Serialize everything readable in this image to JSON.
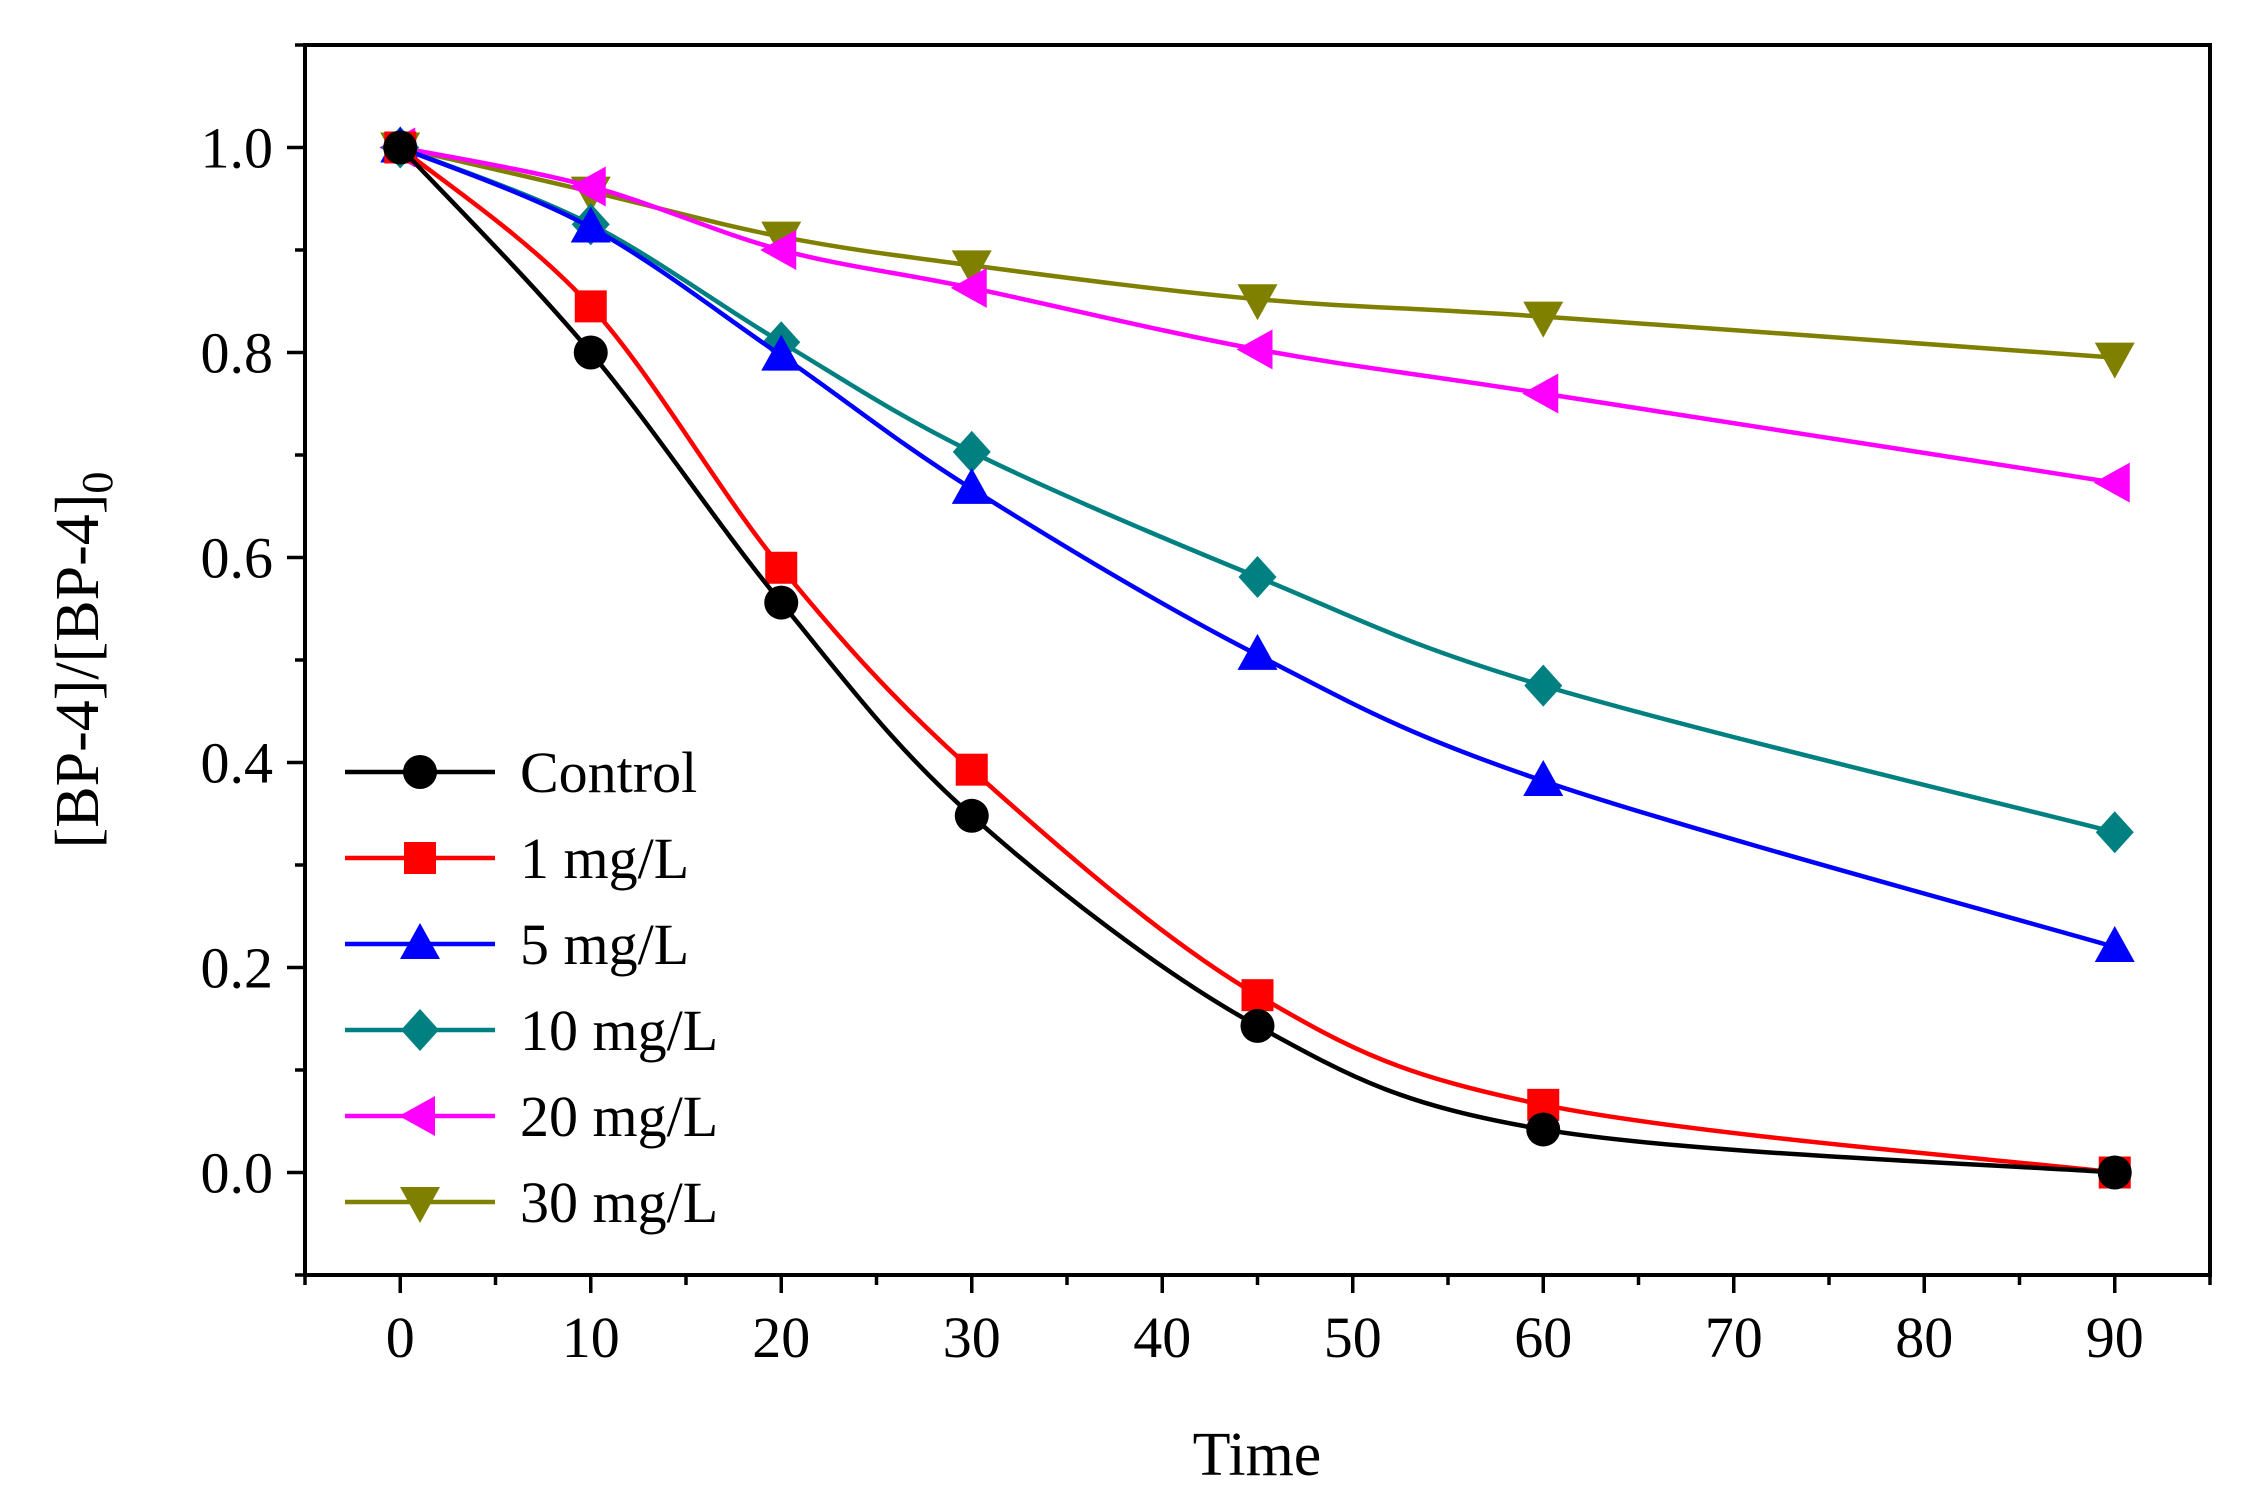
{
  "chart_data": {
    "type": "line",
    "title": "",
    "xlabel": "Time",
    "ylabel": "[BP-4]/[BP-4]",
    "ylabel_subscript": "0",
    "xlim": [
      -5,
      95
    ],
    "ylim": [
      -0.1,
      1.1
    ],
    "xticks": [
      0,
      10,
      20,
      30,
      40,
      50,
      60,
      70,
      80,
      90
    ],
    "xtick_labels": [
      "0",
      "10",
      "20",
      "30",
      "40",
      "50",
      "60",
      "70",
      "80",
      "90"
    ],
    "yticks": [
      0.0,
      0.2,
      0.4,
      0.6,
      0.8,
      1.0
    ],
    "ytick_labels": [
      "0.0",
      "0.2",
      "0.4",
      "0.6",
      "0.8",
      "1.0"
    ],
    "grid": false,
    "legend_position": "bottom-left",
    "x": [
      0,
      10,
      20,
      30,
      45,
      60,
      90
    ],
    "series": [
      {
        "name": "Control",
        "color": "#000000",
        "marker": "circle",
        "values": [
          1.0,
          0.8,
          0.556,
          0.348,
          0.143,
          0.042,
          0.0
        ]
      },
      {
        "name": "1 mg/L",
        "color": "#ff0000",
        "marker": "square",
        "values": [
          1.0,
          0.845,
          0.59,
          0.393,
          0.173,
          0.066,
          0.0
        ]
      },
      {
        "name": "5 mg/L",
        "color": "#0000ff",
        "marker": "triangle-up",
        "values": [
          1.0,
          0.922,
          0.797,
          0.667,
          0.505,
          0.382,
          0.22
        ]
      },
      {
        "name": "10 mg/L",
        "color": "#008080",
        "marker": "diamond",
        "values": [
          1.0,
          0.925,
          0.81,
          0.703,
          0.581,
          0.475,
          0.332
        ]
      },
      {
        "name": "20 mg/L",
        "color": "#ff00ff",
        "marker": "triangle-left",
        "values": [
          1.0,
          0.962,
          0.9,
          0.863,
          0.803,
          0.76,
          0.673
        ]
      },
      {
        "name": "30 mg/L",
        "color": "#808000",
        "marker": "triangle-down",
        "values": [
          1.0,
          0.957,
          0.913,
          0.885,
          0.852,
          0.835,
          0.795
        ]
      }
    ]
  }
}
